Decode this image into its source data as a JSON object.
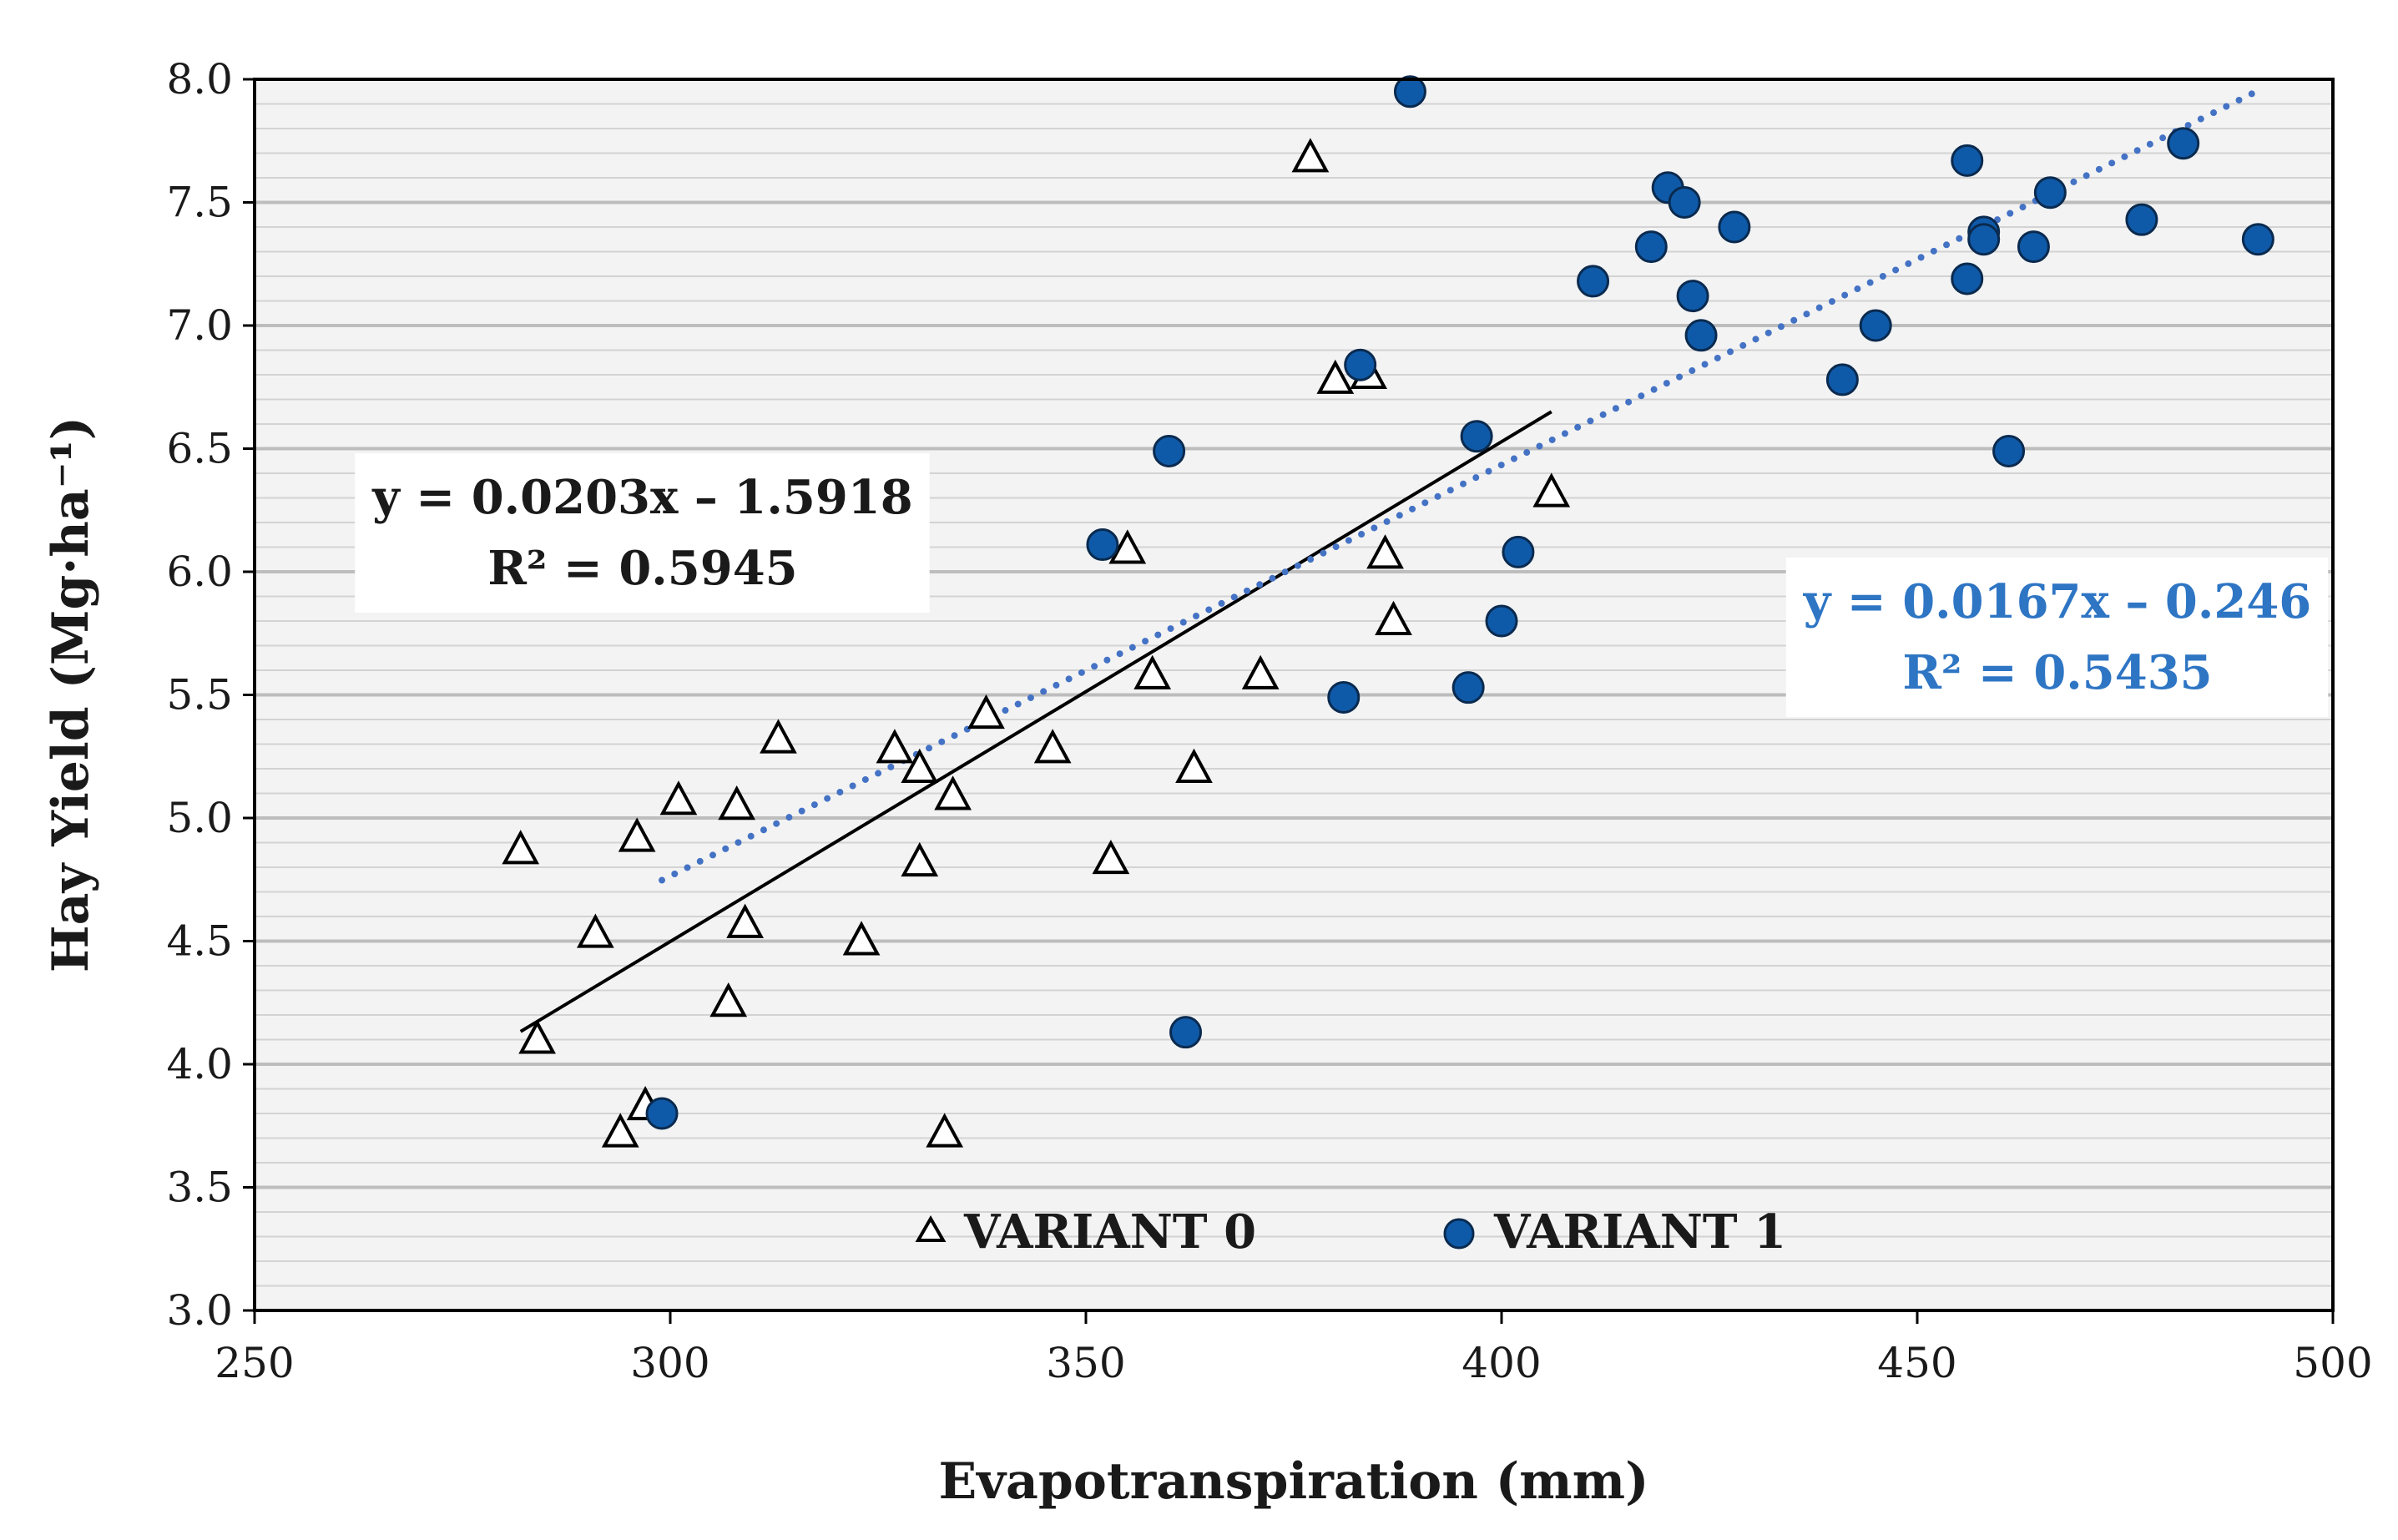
{
  "chart_data": {
    "type": "scatter",
    "title": "",
    "xlabel": "Evapotranspiration (mm)",
    "ylabel": "Hay Yield  (Mg·ha⁻¹)",
    "xlim": [
      250,
      500
    ],
    "ylim": [
      3.0,
      8.0
    ],
    "x_ticks": [
      "250",
      "300",
      "350",
      "400",
      "450",
      "500"
    ],
    "y_ticks": [
      "3.0",
      "3.5",
      "4.0",
      "4.5",
      "5.0",
      "5.5",
      "6.0",
      "6.5",
      "7.0",
      "7.5",
      "8.0"
    ],
    "grid": true,
    "legend_position": "bottom-center",
    "series": [
      {
        "name": "VARIANT 0",
        "marker": "triangle-open",
        "color": "#000000",
        "points": [
          [
            282,
            4.87
          ],
          [
            284,
            4.1
          ],
          [
            291,
            4.53
          ],
          [
            294,
            3.72
          ],
          [
            296,
            4.92
          ],
          [
            297,
            3.83
          ],
          [
            301,
            5.07
          ],
          [
            307,
            4.25
          ],
          [
            308,
            5.05
          ],
          [
            309,
            4.57
          ],
          [
            313,
            5.32
          ],
          [
            323,
            4.5
          ],
          [
            327,
            5.28
          ],
          [
            330,
            4.82
          ],
          [
            330,
            5.2
          ],
          [
            333,
            3.72
          ],
          [
            334,
            5.09
          ],
          [
            338,
            5.42
          ],
          [
            346,
            5.28
          ],
          [
            353,
            4.83
          ],
          [
            355,
            6.09
          ],
          [
            358,
            5.58
          ],
          [
            363,
            5.2
          ],
          [
            371,
            5.58
          ],
          [
            377,
            7.68
          ],
          [
            380,
            6.78
          ],
          [
            384,
            6.8
          ],
          [
            386,
            6.07
          ],
          [
            387,
            5.8
          ],
          [
            406,
            6.32
          ]
        ],
        "trendline": {
          "style": "solid",
          "x_range": [
            282,
            406
          ],
          "slope": 0.0203,
          "intercept": -1.5918,
          "equation": "y = 0.0203x – 1.5918",
          "r_squared": "R² = 0.5945",
          "label_color": "#1a1a1a"
        }
      },
      {
        "name": "VARIANT 1",
        "marker": "circle-filled",
        "color": "#0f5aa8",
        "points": [
          [
            299,
            3.8
          ],
          [
            352,
            6.11
          ],
          [
            360,
            6.49
          ],
          [
            362,
            4.13
          ],
          [
            381,
            5.49
          ],
          [
            383,
            6.84
          ],
          [
            389,
            7.95
          ],
          [
            396,
            5.53
          ],
          [
            397,
            6.55
          ],
          [
            400,
            5.8
          ],
          [
            402,
            6.08
          ],
          [
            411,
            7.18
          ],
          [
            418,
            7.32
          ],
          [
            420,
            7.56
          ],
          [
            422,
            7.5
          ],
          [
            423,
            7.12
          ],
          [
            424,
            6.96
          ],
          [
            428,
            7.4
          ],
          [
            441,
            6.78
          ],
          [
            445,
            7.0
          ],
          [
            456,
            7.19
          ],
          [
            456,
            7.67
          ],
          [
            458,
            7.38
          ],
          [
            458,
            7.35
          ],
          [
            461,
            6.49
          ],
          [
            464,
            7.32
          ],
          [
            466,
            7.54
          ],
          [
            477,
            7.43
          ],
          [
            482,
            7.74
          ],
          [
            491,
            7.35
          ]
        ],
        "trendline": {
          "style": "dotted",
          "x_range": [
            299,
            491
          ],
          "slope": 0.0167,
          "intercept": -0.246,
          "equation": "y = 0.0167x – 0.246",
          "r_squared": "R² = 0.5435",
          "label_color": "#2e75c4"
        }
      }
    ]
  }
}
